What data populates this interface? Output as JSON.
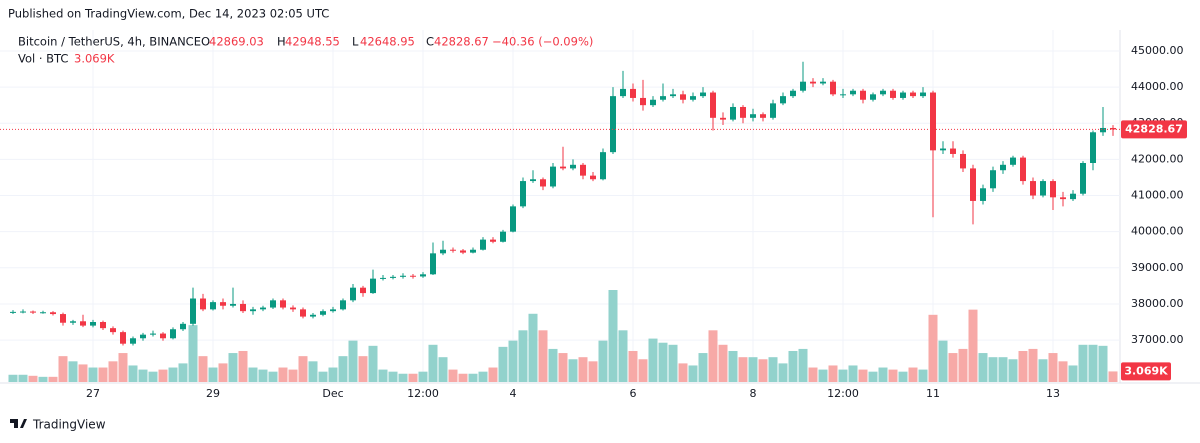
{
  "header": {
    "published": "Published on TradingView.com, Dec 14, 2023 02:05 UTC",
    "footer": "TradingView"
  },
  "chart_data": {
    "type": "candlestick",
    "symbol": "Bitcoin / TetherUS, 4h, BINANCE",
    "ohlc_letters": [
      "O",
      "H",
      "L",
      "C"
    ],
    "change": "−40.36 (−0.09%)",
    "volume_title": "Vol · BTC",
    "volume_label": "3.069K",
    "up_color": "#089981",
    "down_color": "#f23645",
    "volume_up_color": "#92d2cc",
    "volume_down_color": "#f7a9a7",
    "grid": true,
    "ylim": [
      35840,
      45580
    ],
    "yticks": [
      {
        "value": 37000,
        "label": "37000.00"
      },
      {
        "value": 38000,
        "label": "38000.00"
      },
      {
        "value": 39000,
        "label": "39000.00"
      },
      {
        "value": 40000,
        "label": "40000.00"
      },
      {
        "value": 41000,
        "label": "41000.00"
      },
      {
        "value": 42000,
        "label": "42000.00"
      },
      {
        "value": 43000,
        "label": "43000.00"
      },
      {
        "value": 44000,
        "label": "44000.00"
      },
      {
        "value": 45000,
        "label": "45000.00"
      }
    ],
    "categories": [
      null,
      null,
      null,
      null,
      null,
      null,
      null,
      null,
      "27",
      null,
      null,
      null,
      null,
      null,
      null,
      null,
      null,
      null,
      null,
      null,
      "29",
      null,
      null,
      null,
      null,
      null,
      null,
      null,
      null,
      null,
      null,
      null,
      "Dec",
      null,
      null,
      null,
      null,
      null,
      null,
      null,
      null,
      "12:00",
      null,
      null,
      null,
      null,
      null,
      null,
      null,
      null,
      "4",
      null,
      null,
      null,
      null,
      null,
      null,
      null,
      null,
      null,
      null,
      null,
      "6",
      null,
      null,
      null,
      null,
      null,
      null,
      null,
      null,
      null,
      null,
      null,
      "8",
      null,
      null,
      null,
      null,
      null,
      null,
      null,
      null,
      "12:00",
      null,
      null,
      null,
      null,
      null,
      null,
      null,
      null,
      "11",
      null,
      null,
      null,
      null,
      null,
      null,
      null,
      null,
      null,
      null,
      null,
      "13",
      null,
      null,
      null,
      null,
      null,
      null
    ],
    "ohlc": [
      [
        37760,
        37830,
        37720,
        37780
      ],
      [
        37780,
        37850,
        37740,
        37790
      ],
      [
        37790,
        37820,
        37720,
        37760
      ],
      [
        37760,
        37810,
        37730,
        37770
      ],
      [
        37770,
        37800,
        37680,
        37720
      ],
      [
        37720,
        37760,
        37400,
        37480
      ],
      [
        37480,
        37560,
        37420,
        37520
      ],
      [
        37520,
        37700,
        37360,
        37400
      ],
      [
        37400,
        37560,
        37350,
        37500
      ],
      [
        37500,
        37540,
        37280,
        37330
      ],
      [
        37330,
        37380,
        37150,
        37220
      ],
      [
        37220,
        37260,
        36850,
        36900
      ],
      [
        36900,
        37100,
        36850,
        37050
      ],
      [
        37050,
        37200,
        36980,
        37150
      ],
      [
        37150,
        37260,
        37100,
        37180
      ],
      [
        37180,
        37220,
        36980,
        37050
      ],
      [
        37050,
        37350,
        37020,
        37300
      ],
      [
        37300,
        37500,
        37250,
        37450
      ],
      [
        37450,
        38450,
        37400,
        38150
      ],
      [
        38150,
        38280,
        37800,
        37850
      ],
      [
        37850,
        38100,
        37820,
        38050
      ],
      [
        38050,
        38150,
        37850,
        37950
      ],
      [
        37950,
        38450,
        37900,
        38000
      ],
      [
        38000,
        38100,
        37750,
        37800
      ],
      [
        37800,
        37920,
        37700,
        37850
      ],
      [
        37850,
        37950,
        37800,
        37900
      ],
      [
        37900,
        38150,
        37860,
        38100
      ],
      [
        38100,
        38150,
        37850,
        37900
      ],
      [
        37900,
        37960,
        37780,
        37850
      ],
      [
        37850,
        37900,
        37600,
        37650
      ],
      [
        37650,
        37750,
        37600,
        37700
      ],
      [
        37700,
        37850,
        37660,
        37800
      ],
      [
        37800,
        37920,
        37760,
        37850
      ],
      [
        37850,
        38150,
        37820,
        38100
      ],
      [
        38100,
        38550,
        38050,
        38450
      ],
      [
        38450,
        38500,
        38200,
        38300
      ],
      [
        38300,
        38950,
        38280,
        38700
      ],
      [
        38700,
        38800,
        38650,
        38720
      ],
      [
        38720,
        38800,
        38680,
        38750
      ],
      [
        38750,
        38850,
        38700,
        38780
      ],
      [
        38780,
        38830,
        38700,
        38760
      ],
      [
        38760,
        38880,
        38720,
        38820
      ],
      [
        38820,
        39700,
        38800,
        39400
      ],
      [
        39400,
        39750,
        39350,
        39500
      ],
      [
        39500,
        39560,
        39420,
        39480
      ],
      [
        39480,
        39520,
        39380,
        39420
      ],
      [
        39420,
        39560,
        39400,
        39500
      ],
      [
        39500,
        39850,
        39480,
        39780
      ],
      [
        39780,
        39850,
        39680,
        39720
      ],
      [
        39720,
        40050,
        39700,
        40000
      ],
      [
        40000,
        40750,
        39980,
        40700
      ],
      [
        40700,
        41500,
        40650,
        41400
      ],
      [
        41400,
        41700,
        41350,
        41450
      ],
      [
        41450,
        41500,
        41150,
        41250
      ],
      [
        41250,
        41900,
        41200,
        41800
      ],
      [
        41800,
        42350,
        41700,
        41750
      ],
      [
        41750,
        42000,
        41700,
        41850
      ],
      [
        41850,
        41900,
        41450,
        41550
      ],
      [
        41550,
        41650,
        41400,
        41450
      ],
      [
        41450,
        42300,
        41420,
        42200
      ],
      [
        42200,
        44000,
        42150,
        43750
      ],
      [
        43750,
        44450,
        43700,
        43950
      ],
      [
        43950,
        44100,
        43600,
        43700
      ],
      [
        43700,
        44200,
        43350,
        43500
      ],
      [
        43500,
        43750,
        43450,
        43650
      ],
      [
        43650,
        44100,
        43600,
        43750
      ],
      [
        43750,
        43950,
        43700,
        43800
      ],
      [
        43800,
        43900,
        43550,
        43650
      ],
      [
        43650,
        43850,
        43600,
        43750
      ],
      [
        43750,
        44000,
        43700,
        43850
      ],
      [
        43850,
        43900,
        42800,
        43150
      ],
      [
        43150,
        43300,
        42950,
        43100
      ],
      [
        43100,
        43550,
        43050,
        43450
      ],
      [
        43450,
        43500,
        43000,
        43150
      ],
      [
        43150,
        43400,
        43050,
        43250
      ],
      [
        43250,
        43300,
        43050,
        43150
      ],
      [
        43150,
        43650,
        43100,
        43550
      ],
      [
        43550,
        43850,
        43500,
        43750
      ],
      [
        43750,
        43950,
        43700,
        43900
      ],
      [
        43900,
        44700,
        43850,
        44150
      ],
      [
        44150,
        44250,
        44000,
        44100
      ],
      [
        44100,
        44250,
        44050,
        44150
      ],
      [
        44150,
        44200,
        43750,
        43800
      ],
      [
        43800,
        43950,
        43700,
        43800
      ],
      [
        43800,
        43950,
        43750,
        43900
      ],
      [
        43900,
        43950,
        43550,
        43650
      ],
      [
        43650,
        43850,
        43600,
        43800
      ],
      [
        43800,
        43950,
        43750,
        43900
      ],
      [
        43900,
        43950,
        43650,
        43700
      ],
      [
        43700,
        43900,
        43650,
        43850
      ],
      [
        43850,
        43900,
        43700,
        43750
      ],
      [
        43750,
        44000,
        43700,
        43850
      ],
      [
        43850,
        43900,
        40400,
        42250
      ],
      [
        42250,
        42500,
        42150,
        42300
      ],
      [
        42300,
        42500,
        42050,
        42150
      ],
      [
        42150,
        42250,
        41650,
        41750
      ],
      [
        41750,
        41850,
        40200,
        40850
      ],
      [
        40850,
        41300,
        40750,
        41200
      ],
      [
        41200,
        41800,
        41100,
        41700
      ],
      [
        41700,
        41950,
        41600,
        41850
      ],
      [
        41850,
        42100,
        41800,
        42050
      ],
      [
        42050,
        42100,
        41300,
        41400
      ],
      [
        41400,
        41500,
        40900,
        41000
      ],
      [
        41000,
        41450,
        40950,
        41400
      ],
      [
        41400,
        41450,
        40600,
        40950
      ],
      [
        40950,
        41100,
        40700,
        40900
      ],
      [
        40900,
        41150,
        40850,
        41050
      ],
      [
        41050,
        41950,
        41000,
        41900
      ],
      [
        41900,
        42800,
        41700,
        42750
      ],
      [
        42750,
        43450,
        42650,
        42869.03
      ],
      [
        42869.03,
        42948.55,
        42648.95,
        42828.67
      ]
    ],
    "volume": [
      2100,
      2100,
      1800,
      1500,
      1500,
      7500,
      6000,
      5100,
      4200,
      4200,
      6000,
      8400,
      4800,
      3600,
      3000,
      3600,
      4200,
      5400,
      16500,
      7500,
      4200,
      5400,
      8400,
      9000,
      4200,
      3600,
      3000,
      4200,
      3600,
      7500,
      6000,
      3000,
      4200,
      7500,
      12000,
      7500,
      10500,
      3600,
      3000,
      2400,
      2400,
      3000,
      10800,
      7200,
      3600,
      2400,
      2400,
      3000,
      4200,
      10200,
      12000,
      15000,
      19800,
      15000,
      9600,
      8400,
      6600,
      7200,
      6000,
      12000,
      26700,
      15000,
      9000,
      6600,
      12600,
      11400,
      10800,
      5400,
      4800,
      8400,
      15000,
      10800,
      9000,
      7200,
      7200,
      6600,
      7200,
      5400,
      9000,
      9600,
      4200,
      3600,
      4800,
      3600,
      4800,
      3600,
      3000,
      4200,
      3600,
      3000,
      4200,
      3600,
      19500,
      12000,
      8400,
      9600,
      21000,
      8400,
      7200,
      7200,
      6600,
      9000,
      9600,
      6600,
      8400,
      6000,
      4800,
      10800,
      10800,
      10500,
      3069
    ]
  }
}
